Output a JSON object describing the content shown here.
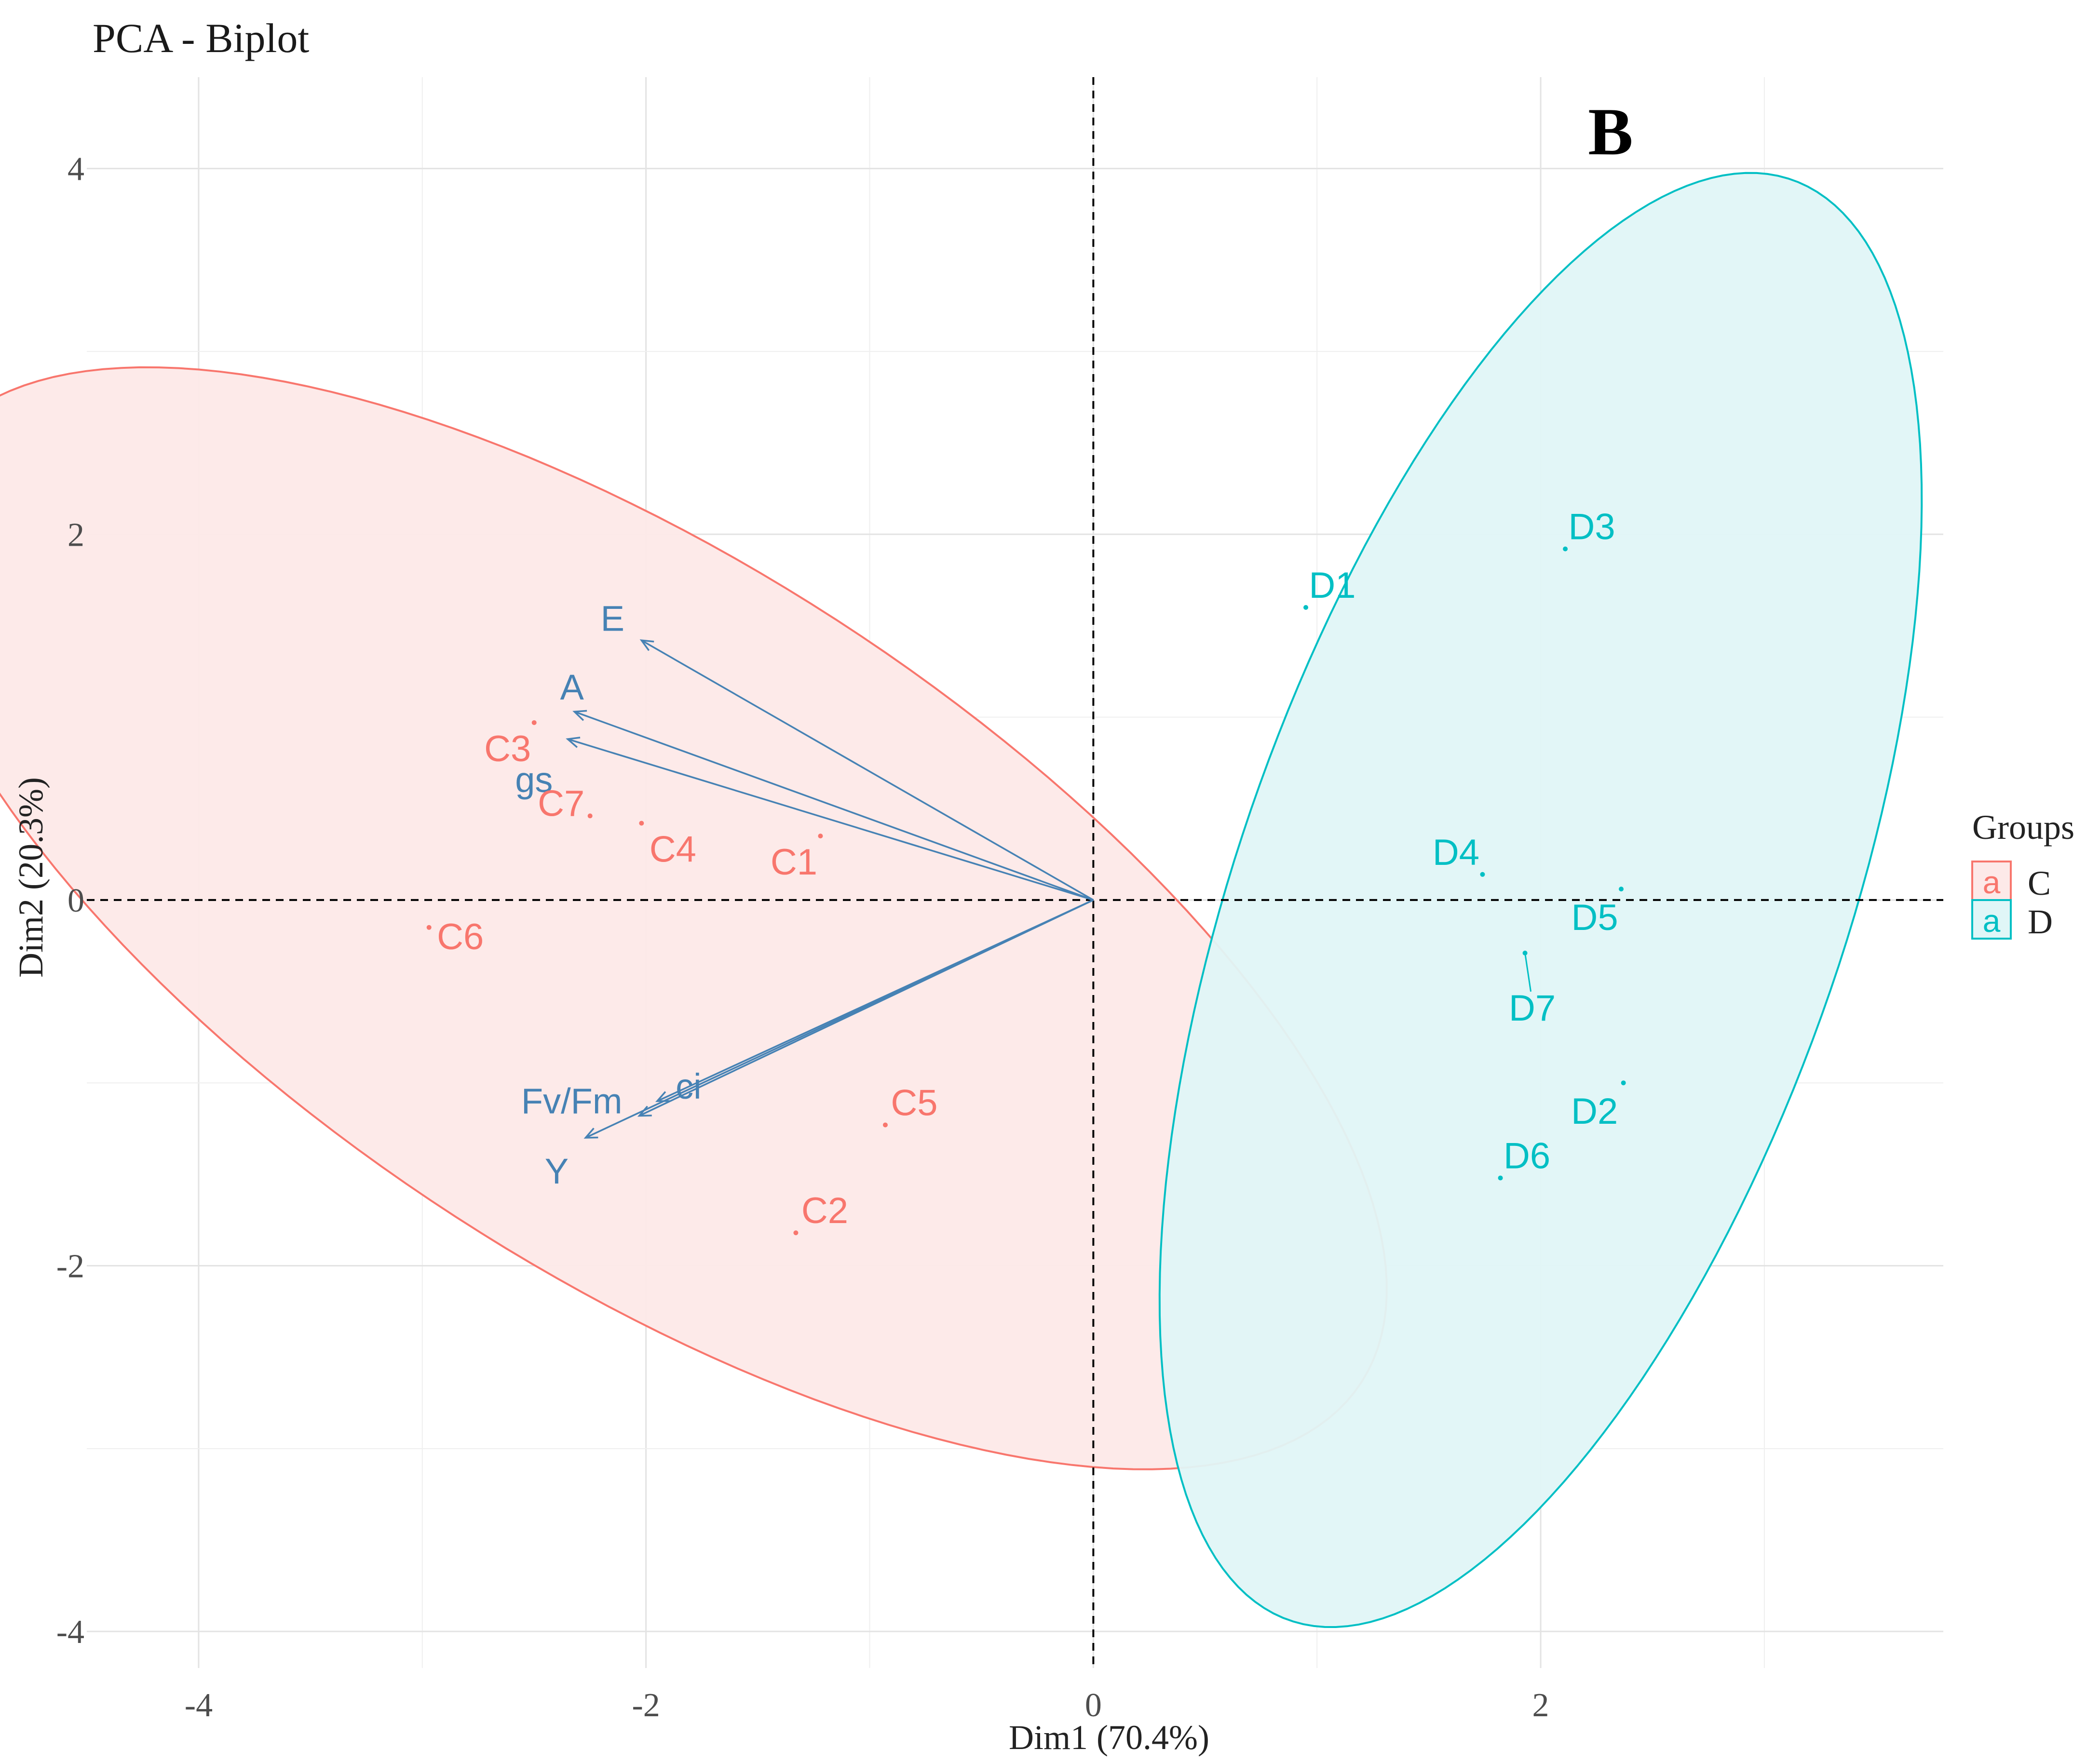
{
  "chart_data": {
    "type": "scatter",
    "title": "PCA - Biplot",
    "panel_label": "B",
    "xlabel": "Dim1 (70.4%)",
    "ylabel": "Dim2 (20.3%)",
    "xlim": [
      -4.5,
      3.8
    ],
    "ylim": [
      -4.2,
      4.5
    ],
    "x_ticks": [
      -4,
      -2,
      0,
      2
    ],
    "y_ticks": [
      -4,
      -2,
      0,
      2,
      4
    ],
    "x_tick_labels": [
      "-4",
      "-2",
      "0",
      "2"
    ],
    "y_tick_labels": [
      "-4",
      "-2",
      "0",
      "2",
      "4"
    ],
    "grid": true,
    "reference_lines": {
      "x": 0,
      "y": 0,
      "style": "dashed"
    },
    "legend": {
      "title": "Groups",
      "position": "right",
      "entries": [
        {
          "key_glyph": "a",
          "label": "C",
          "color": "#F8766D"
        },
        {
          "key_glyph": "a",
          "label": "D",
          "color": "#00BFC4"
        }
      ]
    },
    "groups": [
      {
        "name": "C",
        "color": "#F8766D",
        "fill": "#FDE9E8",
        "ellipse": {
          "center": [
            -2.0,
            -0.1
          ],
          "semi_axis_major": 4.1,
          "semi_axis_minor": 1.8,
          "rotation_deg": -41
        },
        "points": [
          {
            "label": "C1",
            "x": -1.22,
            "y": 0.35
          },
          {
            "label": "C2",
            "x": -1.33,
            "y": -1.82
          },
          {
            "label": "C3",
            "x": -2.5,
            "y": 0.97
          },
          {
            "label": "C4",
            "x": -2.02,
            "y": 0.42
          },
          {
            "label": "C5",
            "x": -0.93,
            "y": -1.23
          },
          {
            "label": "C6",
            "x": -2.97,
            "y": -0.15
          },
          {
            "label": "C7",
            "x": -2.25,
            "y": 0.46
          }
        ]
      },
      {
        "name": "D",
        "color": "#00BFC4",
        "fill": "#E0F6F7",
        "ellipse": {
          "center": [
            2.0,
            0.0
          ],
          "semi_axis_major": 4.1,
          "semi_axis_minor": 1.38,
          "rotation_deg": 75
        },
        "points": [
          {
            "label": "D1",
            "x": 0.95,
            "y": 1.6
          },
          {
            "label": "D2",
            "x": 2.37,
            "y": -1.0
          },
          {
            "label": "D3",
            "x": 2.11,
            "y": 1.92
          },
          {
            "label": "D4",
            "x": 1.74,
            "y": 0.14
          },
          {
            "label": "D5",
            "x": 2.36,
            "y": 0.06
          },
          {
            "label": "D6",
            "x": 1.82,
            "y": -1.52
          },
          {
            "label": "D7",
            "x": 1.93,
            "y": -0.29
          }
        ]
      }
    ],
    "variables": {
      "color": "#4682B4",
      "vectors": [
        {
          "label": "E",
          "x": -2.02,
          "y": 1.42
        },
        {
          "label": "A",
          "x": -2.32,
          "y": 1.03
        },
        {
          "label": "gs",
          "x": -2.35,
          "y": 0.88
        },
        {
          "label": "ci",
          "x": -1.95,
          "y": -1.1
        },
        {
          "label": "Fv/Fm",
          "x": -2.03,
          "y": -1.18
        },
        {
          "label": "Y",
          "x": -2.27,
          "y": -1.3
        }
      ]
    }
  }
}
